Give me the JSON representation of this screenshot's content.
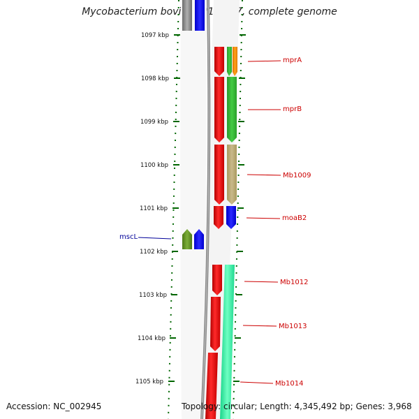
{
  "title": "Mycobacterium bovis AF2122/97, complete genome",
  "footer": {
    "accession": "Accession: NC_002945",
    "topology": "Topology: circular; Length: 4,345,492 bp; Genes: 3,968"
  },
  "colors": {
    "forward_label": "#cc0000",
    "reverse_label": "#000099",
    "tick": "#006600",
    "backbone": "#888888"
  },
  "ruler": {
    "labels": [
      "1097 kbp",
      "1098 kbp",
      "1099 kbp",
      "1100 kbp",
      "1101 kbp",
      "1102 kbp",
      "1103 kbp",
      "1104 kbp",
      "1105 kbp"
    ]
  },
  "genes": [
    {
      "name": "mprA",
      "strand": "forward"
    },
    {
      "name": "mprB",
      "strand": "forward"
    },
    {
      "name": "Mb1009",
      "strand": "forward"
    },
    {
      "name": "moaB2",
      "strand": "forward"
    },
    {
      "name": "mscL",
      "strand": "reverse"
    },
    {
      "name": "Mb1012",
      "strand": "forward"
    },
    {
      "name": "Mb1013",
      "strand": "forward"
    },
    {
      "name": "Mb1014",
      "strand": "forward"
    }
  ]
}
